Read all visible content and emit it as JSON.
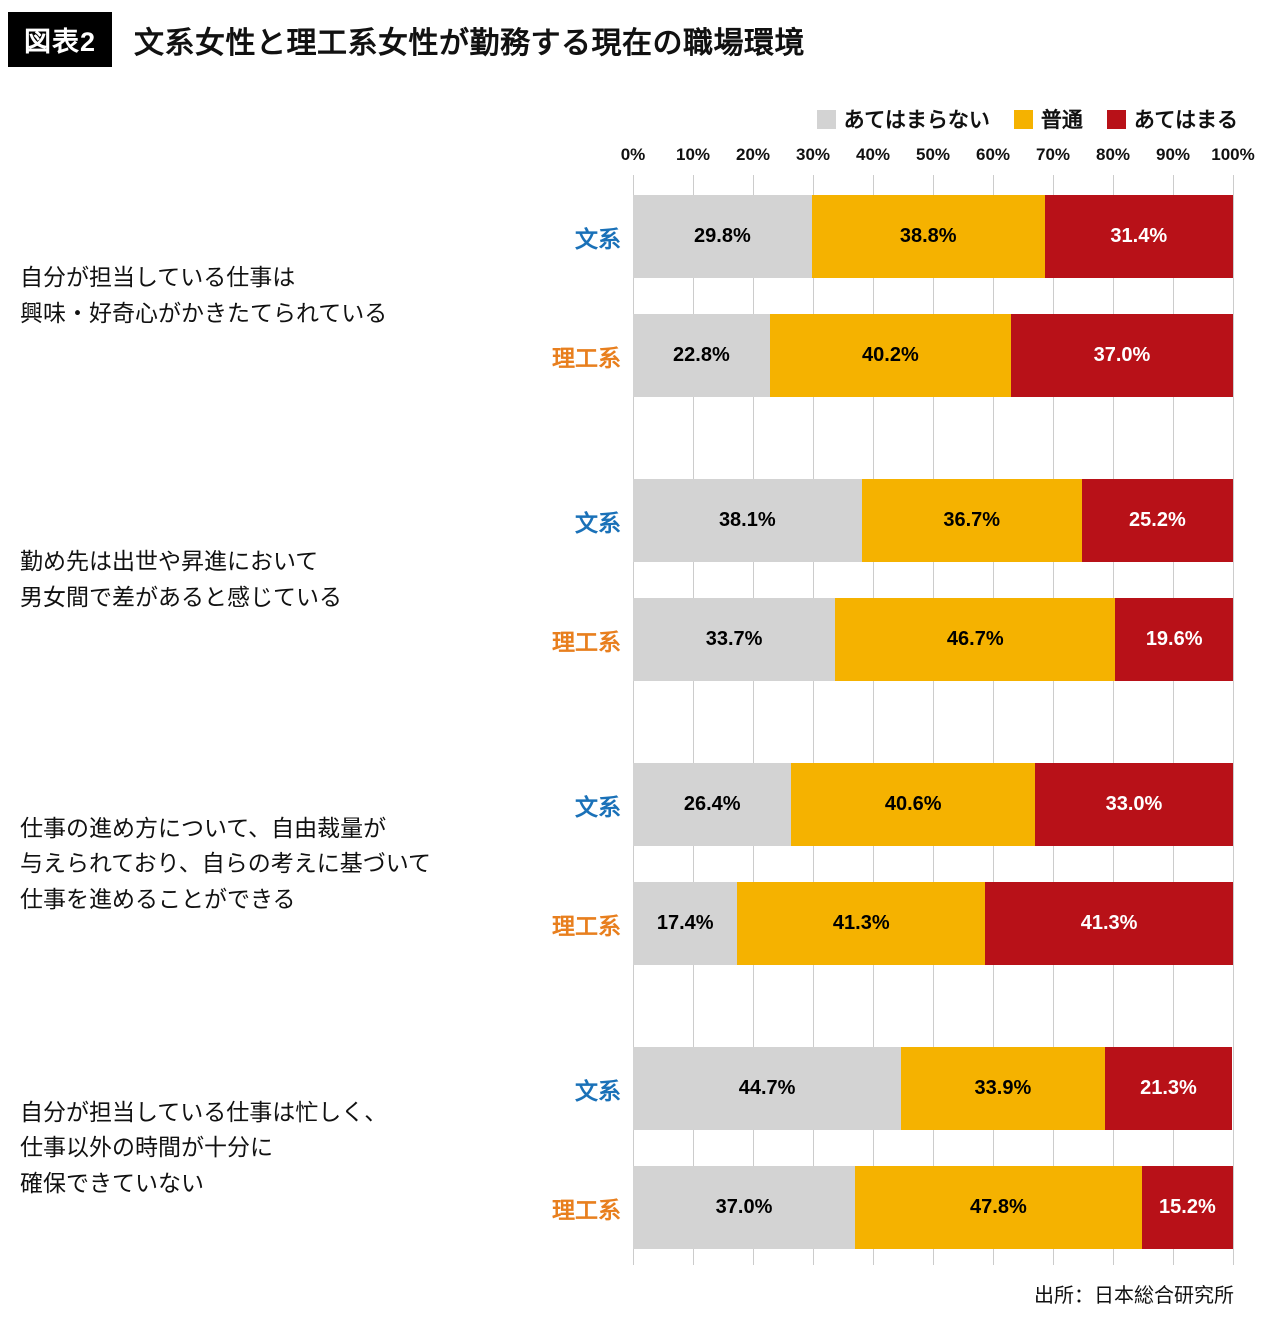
{
  "header": {
    "badge": "図表2",
    "title": "文系女性と理工系女性が勤務する現在の職場環境"
  },
  "legend": [
    {
      "label": "あてはまらない",
      "color": "#d3d3d3"
    },
    {
      "label": "普通",
      "color": "#f5b200"
    },
    {
      "label": "あてはまる",
      "color": "#b81118"
    }
  ],
  "source": "出所：日本総合研究所",
  "chart_data": {
    "type": "bar",
    "orientation": "horizontal",
    "stacked": true,
    "xlim": [
      0,
      100
    ],
    "grid": true,
    "legend_position": "top-right",
    "x_ticks": [
      "0%",
      "10%",
      "20%",
      "30%",
      "40%",
      "50%",
      "60%",
      "70%",
      "80%",
      "90%",
      "100%"
    ],
    "segment_labels": [
      "あてはまらない",
      "普通",
      "あてはまる"
    ],
    "segment_colors": [
      "#d3d3d3",
      "#f5b200",
      "#b81118"
    ],
    "segment_text_colors": [
      "#000000",
      "#000000",
      "#ffffff"
    ],
    "row_label_colors": {
      "文系": "#1a71b8",
      "理工系": "#e87f1e"
    },
    "groups": [
      {
        "question": "自分が担当している仕事は\n興味・好奇心がかきたてられている",
        "rows": [
          {
            "label": "文系",
            "values": [
              29.8,
              38.8,
              31.4
            ]
          },
          {
            "label": "理工系",
            "values": [
              22.8,
              40.2,
              37.0
            ]
          }
        ]
      },
      {
        "question": "勤め先は出世や昇進において\n男女間で差があると感じている",
        "rows": [
          {
            "label": "文系",
            "values": [
              38.1,
              36.7,
              25.2
            ]
          },
          {
            "label": "理工系",
            "values": [
              33.7,
              46.7,
              19.6
            ]
          }
        ]
      },
      {
        "question": "仕事の進め方について、自由裁量が\n与えられており、自らの考えに基づいて\n仕事を進めることができる",
        "rows": [
          {
            "label": "文系",
            "values": [
              26.4,
              40.6,
              33.0
            ]
          },
          {
            "label": "理工系",
            "values": [
              17.4,
              41.3,
              41.3
            ]
          }
        ]
      },
      {
        "question": "自分が担当している仕事は忙しく、\n仕事以外の時間が十分に\n確保できていない",
        "rows": [
          {
            "label": "文系",
            "values": [
              44.7,
              33.9,
              21.3
            ]
          },
          {
            "label": "理工系",
            "values": [
              37.0,
              47.8,
              15.2
            ]
          }
        ]
      }
    ]
  }
}
